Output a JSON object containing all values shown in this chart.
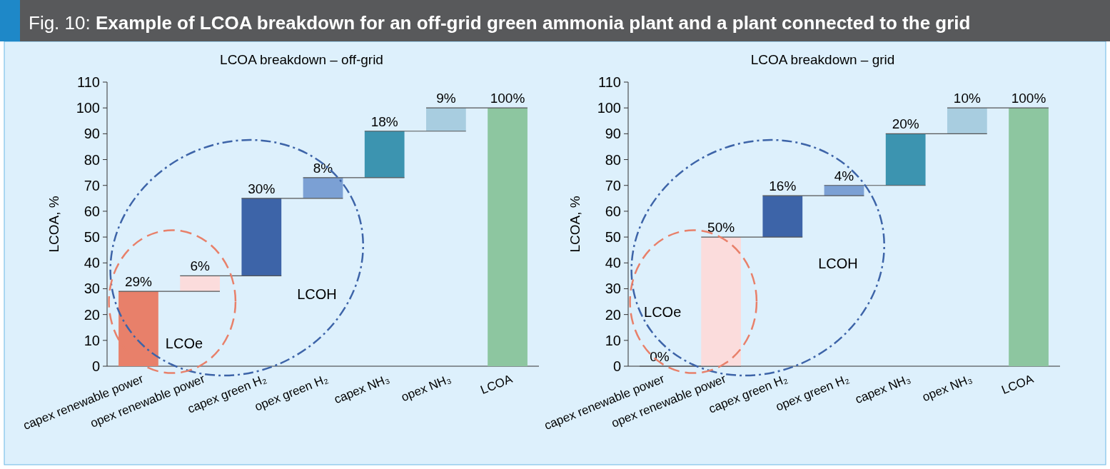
{
  "chart_data": [
    {
      "type": "bar",
      "title": "LCOA breakdown – off-grid",
      "ylabel": "LCOA, %",
      "categories": [
        "capex renewable power",
        "opex renewable power",
        "capex green H₂",
        "opex green H₂",
        "capex NH₃",
        "opex NH₃",
        "LCOA"
      ],
      "values": [
        29,
        6,
        30,
        8,
        18,
        9,
        100
      ],
      "base": [
        0,
        29,
        35,
        65,
        73,
        91,
        0
      ],
      "colors": [
        "#e8806a",
        "#fbdcdc",
        "#3d64a8",
        "#7ba0d4",
        "#3c94b0",
        "#a8cde0",
        "#8dc6a0"
      ],
      "value_labels": [
        "29%",
        "6%",
        "30%",
        "8%",
        "18%",
        "9%",
        "100%"
      ],
      "ylim": [
        0,
        110
      ],
      "yticks": [
        0,
        10,
        20,
        30,
        40,
        50,
        60,
        70,
        80,
        90,
        100,
        110
      ],
      "grid": false,
      "annotations": [
        "Fig. 10: Example of LCOA breakdown for an off-grid green ammonia plant and a plant connected to the grid",
        "LCOe",
        "LCOH"
      ]
    },
    {
      "type": "bar",
      "title": "LCOA breakdown – grid",
      "ylabel": "LCOA, %",
      "categories": [
        "capex renewable power",
        "opex renewable power",
        "capex green H₂",
        "opex green H₂",
        "capex NH₃",
        "opex NH₃",
        "LCOA"
      ],
      "values": [
        0,
        50,
        16,
        4,
        20,
        10,
        100
      ],
      "base": [
        null,
        0,
        50,
        66,
        70,
        90,
        0
      ],
      "colors": [
        "#e8806a",
        "#fbdcdc",
        "#3d64a8",
        "#7ba0d4",
        "#3c94b0",
        "#a8cde0",
        "#8dc6a0"
      ],
      "value_labels": [
        "0%",
        "50%",
        "16%",
        "4%",
        "20%",
        "10%",
        "100%"
      ],
      "ylim": [
        0,
        110
      ],
      "yticks": [
        0,
        10,
        20,
        30,
        40,
        50,
        60,
        70,
        80,
        90,
        100,
        110
      ],
      "grid": false,
      "annotations": [
        "LCOe",
        "LCOH"
      ]
    }
  ]
}
